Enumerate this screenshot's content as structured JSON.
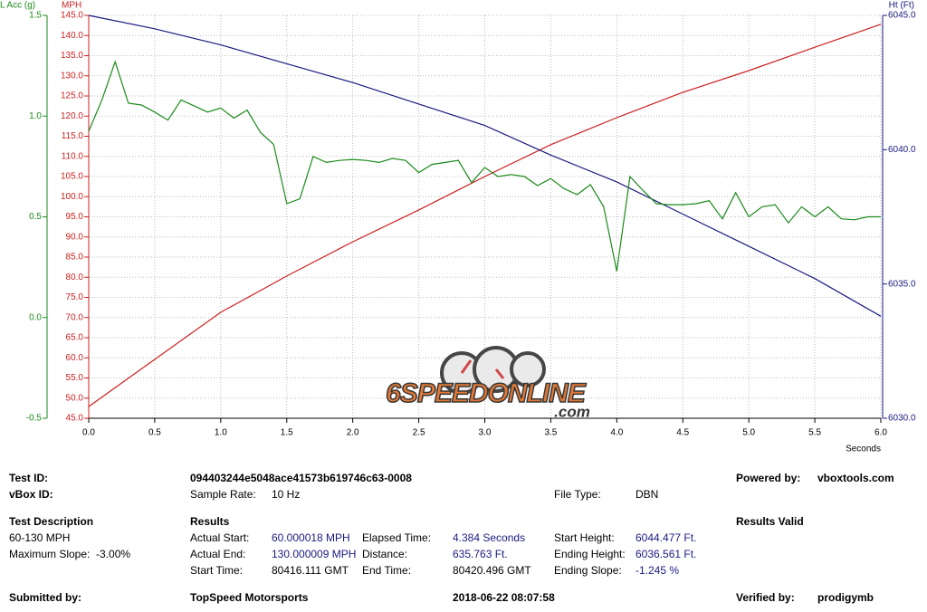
{
  "chart_data": {
    "type": "line",
    "xlabel": "Seconds",
    "ylabel": "MPH",
    "y2label": "Ht (Ft)",
    "y3label": "L Acc (g)",
    "logo": [
      "6SPEEDONLINE",
      ".com"
    ],
    "grid": true,
    "xlim": [
      0,
      6
    ],
    "xticks": [
      {
        "value": 0,
        "label": "0.0"
      },
      0.5,
      {
        "value": 1,
        "label": "1.0"
      },
      1.5,
      {
        "value": 2,
        "label": "2.0"
      },
      2.5,
      {
        "value": 3,
        "label": "3.0"
      },
      3.5,
      {
        "value": 4,
        "label": "4.0"
      },
      4.5,
      {
        "value": 5,
        "label": "5.0"
      },
      5.5,
      {
        "value": 6,
        "label": "6.0"
      }
    ],
    "ylim": [
      45,
      145
    ],
    "yticks": [
      {
        "value": 45,
        "label": "45.0"
      },
      {
        "value": 50,
        "label": "50.0"
      },
      {
        "value": 55,
        "label": "55.0"
      },
      {
        "value": 60,
        "label": "60.0"
      },
      {
        "value": 65,
        "label": "65.0"
      },
      {
        "value": 70,
        "label": "70.0"
      },
      {
        "value": 75,
        "label": "75.0"
      },
      {
        "value": 80,
        "label": "80.0"
      },
      {
        "value": 85,
        "label": "85.0"
      },
      {
        "value": 90,
        "label": "90.0"
      },
      {
        "value": 95,
        "label": "95.0"
      },
      {
        "value": 100,
        "label": "100.0"
      },
      {
        "value": 105,
        "label": "105.0"
      },
      {
        "value": 110,
        "label": "110.0"
      },
      {
        "value": 115,
        "label": "115.0"
      },
      {
        "value": 120,
        "label": "120.0"
      },
      {
        "value": 125,
        "label": "125.0"
      },
      {
        "value": 130,
        "label": "130.0"
      },
      {
        "value": 135,
        "label": "135.0"
      },
      {
        "value": 140,
        "label": "140.0"
      },
      {
        "value": 145,
        "label": "145.0"
      }
    ],
    "y2lim": [
      6030,
      6045
    ],
    "y2ticks": [
      {
        "value": 6030,
        "label": "6030.0"
      },
      {
        "value": 6035,
        "label": "6035.0"
      },
      {
        "value": 6040,
        "label": "6040.0"
      },
      {
        "value": 6045,
        "label": "6045.0"
      }
    ],
    "y3lim": [
      -0.5,
      1.5
    ],
    "y3ticks": [
      -0.5,
      {
        "value": 0,
        "label": "0.0"
      },
      0.5,
      {
        "value": 1,
        "label": "1.0"
      },
      1.5
    ],
    "series": [
      {
        "name": "MPH",
        "color": "#cc2020",
        "axis": "y",
        "x": [
          0,
          0.5,
          1,
          1.5,
          2,
          2.5,
          3,
          3.5,
          4,
          4.5,
          5,
          5.5,
          6
        ],
        "values": [
          47.9,
          59.6,
          71.3,
          80.3,
          88.8,
          96.7,
          105,
          112.9,
          119.6,
          125.9,
          131.3,
          137.1,
          142.8
        ]
      },
      {
        "name": "Ht (Ft)",
        "color": "#1a1a80",
        "axis": "y2",
        "x": [
          0,
          0.5,
          1,
          1.5,
          2,
          2.5,
          3,
          3.5,
          4,
          4.5,
          5,
          5.5,
          6
        ],
        "values": [
          6045.0,
          6044.5,
          6043.9,
          6043.2,
          6042.5,
          6041.7,
          6040.9,
          6039.8,
          6038.8,
          6037.6,
          6036.4,
          6035.2,
          6033.8
        ]
      },
      {
        "name": "L Acc (g)",
        "color": "#1a8a1a",
        "axis": "y3",
        "x": [
          0,
          0.1,
          0.2,
          0.3,
          0.4,
          0.5,
          0.6,
          0.7,
          0.8,
          0.9,
          1,
          1.1,
          1.2,
          1.3,
          1.4,
          1.5,
          1.6,
          1.7,
          1.8,
          1.9,
          2,
          2.1,
          2.2,
          2.3,
          2.4,
          2.5,
          2.6,
          2.7,
          2.8,
          2.9,
          3,
          3.1,
          3.2,
          3.3,
          3.4,
          3.5,
          3.6,
          3.7,
          3.8,
          3.9,
          4,
          4.1,
          4.2,
          4.3,
          4.4,
          4.5,
          4.6,
          4.7,
          4.8,
          4.9,
          5,
          5.1,
          5.2,
          5.3,
          5.4,
          5.5,
          5.6,
          5.7,
          5.8,
          5.9,
          6
        ],
        "values": [
          0.925,
          1.08,
          1.27,
          1.064,
          1.055,
          1.02,
          0.98,
          1.08,
          1.05,
          1.02,
          1.04,
          0.99,
          1.03,
          0.92,
          0.86,
          0.565,
          0.59,
          0.8,
          0.77,
          0.78,
          0.785,
          0.78,
          0.77,
          0.79,
          0.78,
          0.72,
          0.76,
          0.77,
          0.78,
          0.67,
          0.745,
          0.7,
          0.71,
          0.7,
          0.655,
          0.69,
          0.64,
          0.61,
          0.66,
          0.55,
          0.23,
          0.7,
          0.63,
          0.565,
          0.56,
          0.56,
          0.565,
          0.58,
          0.49,
          0.62,
          0.5,
          0.55,
          0.56,
          0.47,
          0.55,
          0.5,
          0.55,
          0.49,
          0.485,
          0.5,
          0.5
        ]
      }
    ]
  },
  "report": {
    "test_id": {
      "label": "Test ID:",
      "value": "094403244e5048ace41573b619746c63-0008"
    },
    "powered_by": {
      "label": "Powered by:",
      "value": "vboxtools.com"
    },
    "vbox_id": {
      "label": "vBox ID:"
    },
    "sample_rate": {
      "label": "Sample Rate:",
      "value": "10 Hz"
    },
    "file_type": {
      "label": "File Type:",
      "value": "DBN"
    },
    "test_description": {
      "label": "Test Description",
      "lines": [
        "60-130 MPH",
        "Maximum Slope:  -3.00%"
      ]
    },
    "results_heading": "Results",
    "results_status": "Results Valid",
    "actual_start": {
      "label": "Actual Start:",
      "value": "60.000018 MPH"
    },
    "actual_end": {
      "label": "Actual End:",
      "value": "130.000009 MPH"
    },
    "start_time": {
      "label": "Start Time:",
      "value": "80416.111 GMT"
    },
    "elapsed_time": {
      "label": "Elapsed Time:",
      "value": "4.384 Seconds"
    },
    "distance": {
      "label": "Distance:",
      "value": "635.763 Ft."
    },
    "end_time": {
      "label": "End Time:",
      "value": "80420.496 GMT"
    },
    "start_height": {
      "label": "Start Height:",
      "value": "6044.477 Ft."
    },
    "ending_height": {
      "label": "Ending Height:",
      "value": "6036.561 Ft."
    },
    "ending_slope": {
      "label": "Ending Slope:",
      "value": "-1.245 %"
    },
    "submitted_by": {
      "label": "Submitted by:",
      "value": "TopSpeed Motorsports"
    },
    "date": "2018-06-22 08:07:58",
    "verified_by": {
      "label": "Verified by:",
      "value": "prodigymb"
    }
  }
}
